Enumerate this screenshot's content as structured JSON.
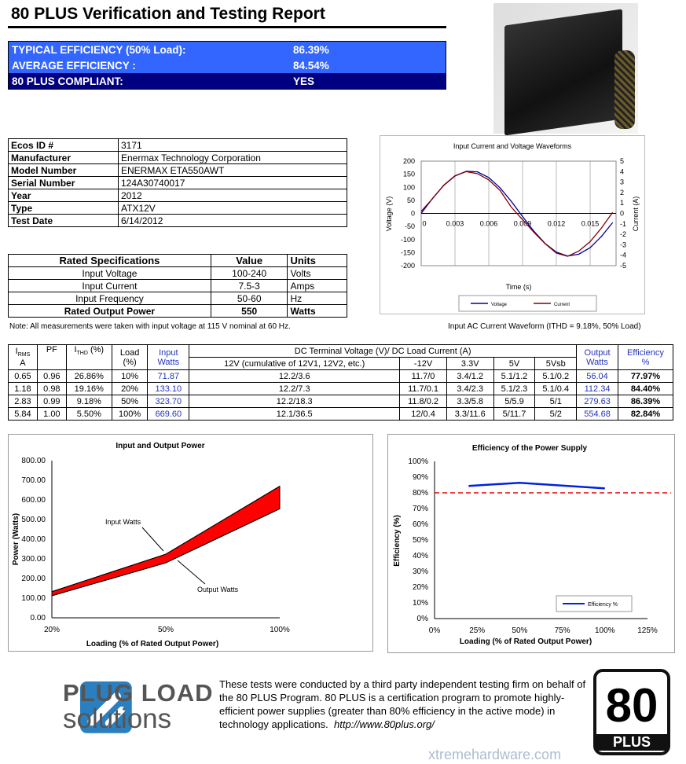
{
  "title": "80 PLUS Verification and Testing Report",
  "summary": [
    {
      "label": "TYPICAL EFFICIENCY (50% Load):",
      "value": "86.39%"
    },
    {
      "label": "AVERAGE EFFICIENCY :",
      "value": "84.54%"
    },
    {
      "label": "80 PLUS COMPLIANT:",
      "value": "YES"
    }
  ],
  "colors": {
    "summary_blue": "#3366ff",
    "summary_navy": "#000080",
    "series_blue": "#0000a0",
    "fill_red": "#ff0000",
    "current": "#800000"
  },
  "info": [
    {
      "k": "Ecos ID #",
      "v": "3171"
    },
    {
      "k": "Manufacturer",
      "v": "Enermax Technology Corporation"
    },
    {
      "k": "Model Number",
      "v": "ENERMAX ETA550AWT"
    },
    {
      "k": "Serial Number",
      "v": "124A30740017"
    },
    {
      "k": "Year",
      "v": "2012"
    },
    {
      "k": "Type",
      "v": "ATX12V"
    },
    {
      "k": "Test Date",
      "v": "6/14/2012"
    }
  ],
  "specs": {
    "headers": [
      "Rated Specifications",
      "Value",
      "Units"
    ],
    "rows": [
      [
        "Input Voltage",
        "100-240",
        "Volts"
      ],
      [
        "Input Current",
        "7.5-3",
        "Amps"
      ],
      [
        "Input Frequency",
        "50-60",
        "Hz"
      ],
      [
        "Rated Output Power",
        "550",
        "Watts"
      ]
    ]
  },
  "note": "Note: All measurements were taken with input voltage at 115 V nominal at 60 Hz.",
  "wave_caption": "Input AC Current Waveform (ITHD = 9.18%, 50% Load)",
  "table": {
    "h": {
      "irms": "I",
      "irms_sub": "RMS",
      "irms_unit": "A",
      "pf": "PF",
      "ithd": "I",
      "ithd_sub": "THD",
      "ithd_unit": " (%)",
      "load": "Load",
      "load_unit": "(%)",
      "input": "Input",
      "input_unit": "Watts",
      "dc": "DC Terminal Voltage (V)/ DC Load Current (A)",
      "v12": "12V (cumulative of 12V1, 12V2, etc.)",
      "vm12": "-12V",
      "v33": "3.3V",
      "v5": "5V",
      "v5sb": "5Vsb",
      "out": "Output",
      "out_unit": "Watts",
      "eff": "Efficiency",
      "eff_unit": "%"
    },
    "rows": [
      [
        "0.65",
        "0.96",
        "26.86%",
        "10%",
        "71.87",
        "12.2/3.6",
        "11.7/0",
        "3.4/1.2",
        "5.1/1.2",
        "5.1/0.2",
        "56.04",
        "77.97%"
      ],
      [
        "1.18",
        "0.98",
        "19.16%",
        "20%",
        "133.10",
        "12.2/7.3",
        "11.7/0.1",
        "3.4/2.3",
        "5.1/2.3",
        "5.1/0.4",
        "112.34",
        "84.40%"
      ],
      [
        "2.83",
        "0.99",
        "9.18%",
        "50%",
        "323.70",
        "12.2/18.3",
        "11.8/0.2",
        "3.3/5.8",
        "5/5.9",
        "5/1",
        "279.63",
        "86.39%"
      ],
      [
        "5.84",
        "1.00",
        "5.50%",
        "100%",
        "669.60",
        "12.1/36.5",
        "12/0.4",
        "3.3/11.6",
        "5/11.7",
        "5/2",
        "554.68",
        "82.84%"
      ]
    ]
  },
  "chart_data": [
    {
      "type": "line",
      "title": "Input Current and Voltage Waveforms",
      "xlabel": "Time (s)",
      "ylabel": "Voltage (V)",
      "y2label": "Current (A)",
      "xlim": [
        0,
        0.0173
      ],
      "ylim": [
        -200,
        200
      ],
      "y2lim": [
        -5,
        5
      ],
      "grid": true,
      "legend": "bottom",
      "xticks": [
        "0",
        "0.003",
        "0.006",
        "0.009",
        "0.012",
        "0.015"
      ],
      "yticks": [
        "200",
        "150",
        "100",
        "50",
        "0",
        "-50",
        "-100",
        "-150",
        "-200"
      ],
      "y2ticks": [
        "5",
        "4",
        "3",
        "2",
        "1",
        "0",
        "-1",
        "-2",
        "-3",
        "-4",
        "-5"
      ],
      "x": [
        0,
        0.001,
        0.002,
        0.003,
        0.004,
        0.005,
        0.006,
        0.007,
        0.008,
        0.009,
        0.01,
        0.011,
        0.012,
        0.013,
        0.014,
        0.015,
        0.016,
        0.017
      ],
      "series": [
        {
          "name": "Voltage",
          "axis": "left",
          "values": [
            0,
            57,
            107,
            143,
            161,
            159,
            137,
            98,
            46,
            -12,
            -68,
            -115,
            -148,
            -163,
            -156,
            -131,
            -88,
            -35
          ]
        },
        {
          "name": "Current",
          "axis": "right",
          "values": [
            0.2,
            1.4,
            2.7,
            3.6,
            4.0,
            3.8,
            3.2,
            2.2,
            0.6,
            -0.6,
            -1.8,
            -2.9,
            -3.8,
            -4.1,
            -3.6,
            -2.7,
            -1.4,
            0.1
          ]
        }
      ]
    },
    {
      "type": "area",
      "title": "Input and Output Power",
      "xlabel": "Loading (% of Rated Output Power)",
      "ylabel": "Power (Watts)",
      "categories": [
        "20%",
        "50%",
        "100%"
      ],
      "ylim": [
        0,
        800
      ],
      "yticks": [
        "0.00",
        "100.00",
        "200.00",
        "300.00",
        "400.00",
        "500.00",
        "600.00",
        "700.00",
        "800.00"
      ],
      "series": [
        {
          "name": "Input Watts",
          "values": [
            133.1,
            323.7,
            669.6
          ]
        },
        {
          "name": "Output Watts",
          "values": [
            112.34,
            279.63,
            554.68
          ]
        }
      ],
      "annotations": [
        "Input Watts",
        "Output Watts"
      ]
    },
    {
      "type": "line",
      "title": "Efficiency of the Power Supply",
      "xlabel": "Loading (% of Rated Output Power)",
      "ylabel": "Efficiency (%)",
      "xlim": [
        0,
        125
      ],
      "ylim": [
        0,
        100
      ],
      "xticks": [
        "0%",
        "25%",
        "50%",
        "75%",
        "100%",
        "125%"
      ],
      "yticks": [
        "0%",
        "10%",
        "20%",
        "30%",
        "40%",
        "50%",
        "60%",
        "70%",
        "80%",
        "90%",
        "100%"
      ],
      "legend": "bottom-right",
      "threshold": 80,
      "series": [
        {
          "name": "Efficiency %",
          "x": [
            20,
            50,
            100
          ],
          "values": [
            84.4,
            86.39,
            82.84
          ]
        }
      ]
    }
  ],
  "footer": {
    "logo1": "PLUG LOAD",
    "logo2": "solutions",
    "text": "These tests were conducted by a third party independent testing firm on behalf of the 80 PLUS Program. 80 PLUS is a certification program to promote highly-efficient power supplies (greater than 80% efficiency in the active mode) in technology applications.",
    "url": "http://www.80plus.org/",
    "badge_num": "80",
    "badge_text": "PLUS",
    "watermark": "xtremehardware.com"
  }
}
